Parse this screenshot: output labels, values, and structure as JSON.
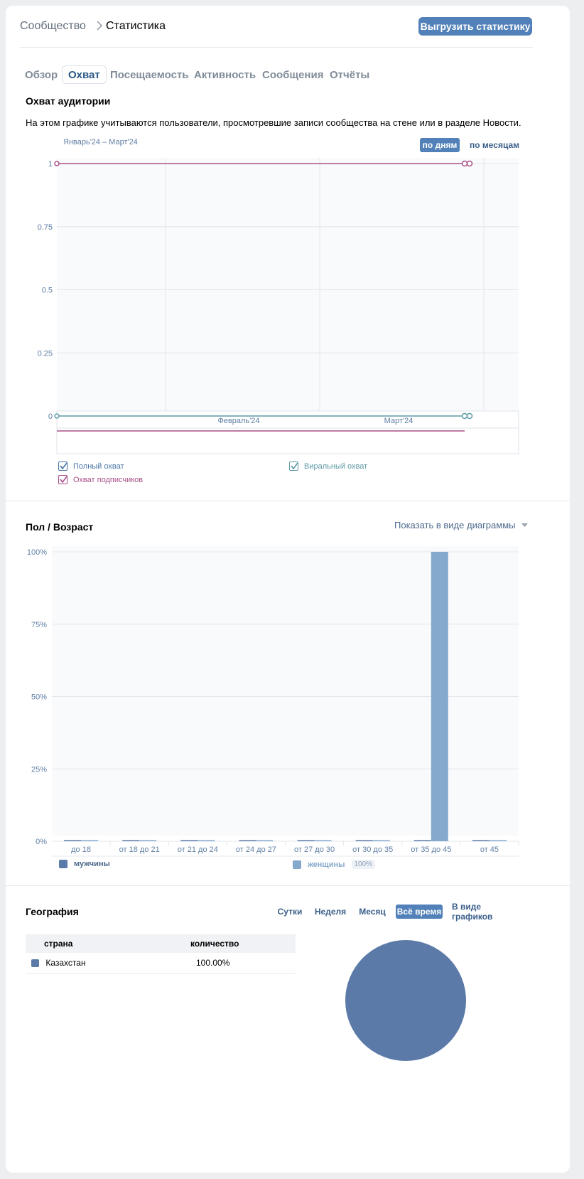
{
  "breadcrumb": {
    "root": "Сообщество",
    "current": "Статистика"
  },
  "export_label": "Выгрузить статистику",
  "tabs": [
    {
      "label": "Обзор",
      "active": false
    },
    {
      "label": "Охват",
      "active": true
    },
    {
      "label": "Посещаемость",
      "active": false
    },
    {
      "label": "Активность",
      "active": false
    },
    {
      "label": "Сообщения",
      "active": false
    },
    {
      "label": "Отчёты",
      "active": false
    }
  ],
  "reach": {
    "title": "Охват аудитории",
    "description": "На этом графике учитываются пользователи, просмотревшие записи сообщества на стене или в разделе Новости.",
    "range": "Январь'24 – Март'24",
    "by_days": "по дням",
    "by_months": "по месяцам",
    "legend": {
      "full": "Полный охват",
      "viral": "Виральный охват",
      "subscribers": "Охват подписчиков"
    }
  },
  "demographics": {
    "title": "Пол / Возраст",
    "view_select": "Показать в виде диаграммы",
    "legend_male": "мужчины",
    "legend_female": "женщины",
    "female_pct": "100%"
  },
  "geo": {
    "title": "География",
    "filters": [
      "Сутки",
      "Неделя",
      "Месяц",
      "Всё время",
      "В виде графиков"
    ],
    "active_filter": "Всё время",
    "col_country": "страна",
    "col_count": "количество",
    "rows": [
      {
        "country": "Казахстан",
        "value": "100.00%"
      }
    ]
  },
  "colors": {
    "accent": "#5181b8",
    "full_reach": "#4a76a8",
    "viral": "#5e9aa6",
    "subscribers": "#a94f87",
    "male": "#5b7aa8",
    "female": "#85a9cc"
  },
  "chart_data": [
    {
      "type": "line",
      "title": "",
      "x_labels": [
        "Февраль'24",
        "Март'24"
      ],
      "y_ticks": [
        "0",
        "0.25",
        "0.5",
        "0.75",
        "1"
      ],
      "ylim": [
        0,
        1
      ],
      "series": [
        {
          "name": "Охват подписчиков",
          "values": [
            1,
            1
          ]
        },
        {
          "name": "Виральный охват",
          "values": [
            0,
            0
          ]
        }
      ]
    },
    {
      "type": "bar",
      "categories": [
        "до 18",
        "от 18 до 21",
        "от 21 до 24",
        "от 24 до 27",
        "от 27 до 30",
        "от 30 до 35",
        "от 35 до 45",
        "от 45"
      ],
      "y_ticks": [
        "0%",
        "25%",
        "50%",
        "75%",
        "100%"
      ],
      "ylim": [
        0,
        100
      ],
      "series": [
        {
          "name": "мужчины",
          "values": [
            0,
            0,
            0,
            0,
            0,
            0,
            0,
            0
          ]
        },
        {
          "name": "женщины",
          "values": [
            0,
            0,
            0,
            0,
            0,
            0,
            100,
            0
          ]
        }
      ]
    },
    {
      "type": "pie",
      "labels": [
        "Казахстан"
      ],
      "values": [
        100
      ]
    }
  ]
}
